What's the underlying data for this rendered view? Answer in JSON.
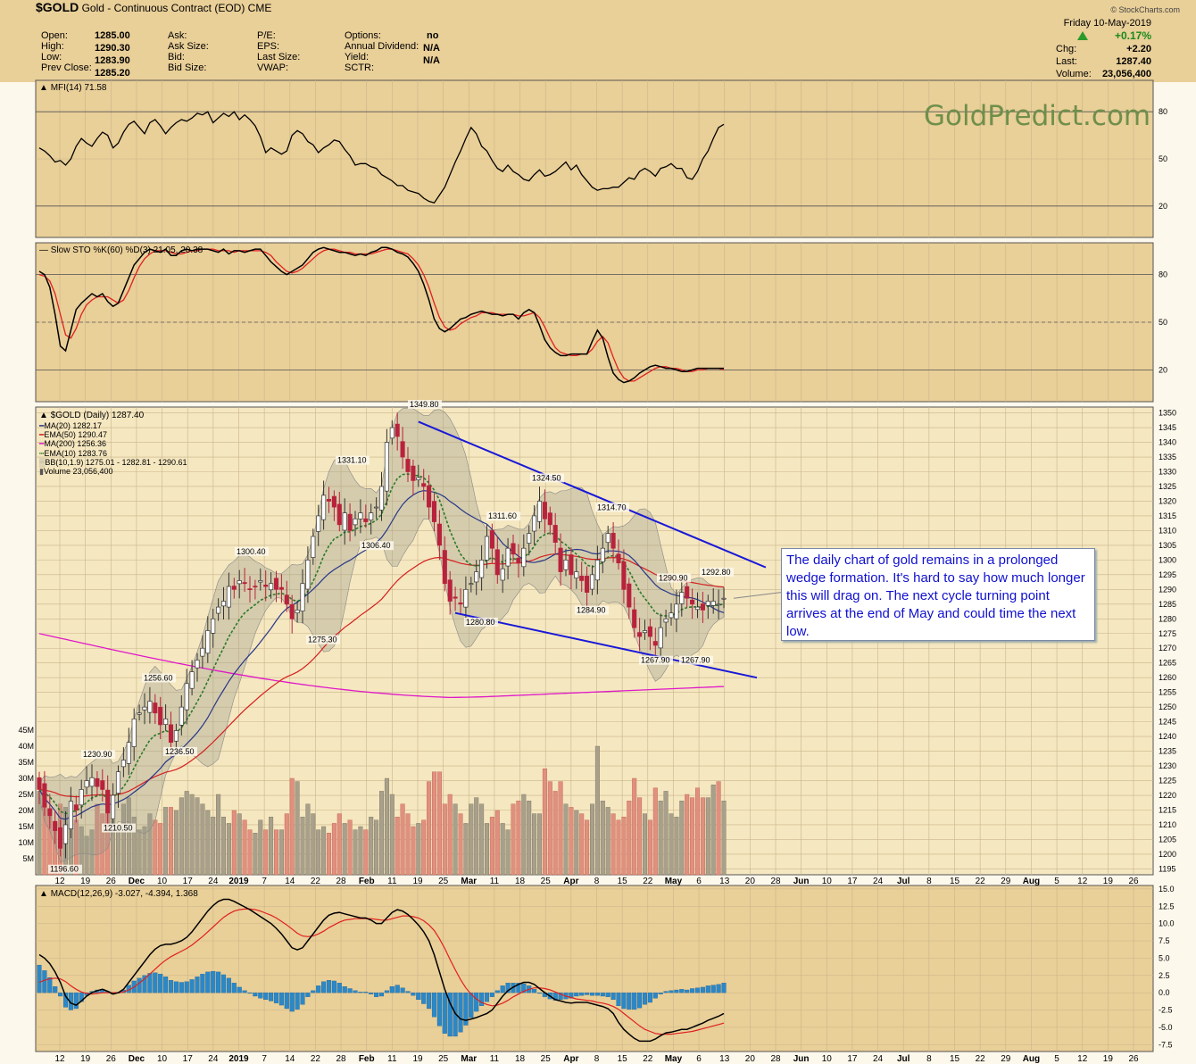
{
  "header": {
    "symbol": "$GOLD",
    "name": "Gold - Continuous Contract (EOD)",
    "exchange": "CME"
  },
  "quote": {
    "open_label": "Open:",
    "open": "1285.00",
    "high_label": "High:",
    "high": "1290.30",
    "low_label": "Low:",
    "low": "1283.90",
    "prev_label": "Prev Close:",
    "prev": "1285.20",
    "ask_label": "Ask:",
    "asksize_label": "Ask Size:",
    "bid_label": "Bid:",
    "bidsize_label": "Bid Size:",
    "pe_label": "P/E:",
    "eps_label": "EPS:",
    "lastsize_label": "Last Size:",
    "vwap_label": "VWAP:",
    "options_label": "Options:",
    "options": "no",
    "div_label": "Annual Dividend:",
    "div": "N/A",
    "yield_label": "Yield:",
    "yield": "N/A",
    "sctr_label": "SCTR:"
  },
  "right_quote": {
    "date": "Friday  10-May-2019",
    "pct": "+0.17%",
    "chg_label": "Chg:",
    "chg": "+2.20",
    "last_label": "Last:",
    "last": "1287.40",
    "vol_label": "Volume:",
    "vol": "23,056,400",
    "copyright": "© StockCharts.com"
  },
  "watermark": "GoldPredict.com",
  "note": "The daily chart of gold remains in a prolonged wedge formation. It's hard to say how much longer this will drag on. The next cycle turning point arrives at the end of May and could time the next low.",
  "panel_labels": {
    "mfi": "MFI(14) 71.58",
    "sto": "Slow STO %K(60) %D(3) 21.05, 20.38",
    "macd": "MACD(12,26,9) -3.027, -4.394, 1.368"
  },
  "legend": {
    "price": "$GOLD (Daily) 1287.40",
    "ma20": "MA(20) 1282.17",
    "ema50": "EMA(50) 1290.47",
    "ma200": "MA(200) 1256.36",
    "ema10": "EMA(10) 1283.76",
    "bb": "BB(10,1.9) 1275.01 - 1282.81 - 1290.61",
    "volume": "Volume 23,056,400"
  },
  "colors": {
    "panel_bg": "#e9cf98",
    "price_bg": "#f5e7c0",
    "up": "#ffffff",
    "down": "#b8223c",
    "ma20": "#27378a",
    "ema50": "#d42020",
    "ma200": "#e018c8",
    "ema10": "#2a7a2a",
    "wedge": "#1818d8",
    "macd_hist": "#2b88c8"
  },
  "chart_data": [
    {
      "type": "candlestick",
      "title": "$GOLD (Daily)",
      "y_axis": [
        1195,
        1200,
        1205,
        1210,
        1215,
        1220,
        1225,
        1230,
        1235,
        1240,
        1245,
        1250,
        1255,
        1260,
        1265,
        1270,
        1275,
        1280,
        1285,
        1290,
        1295,
        1300,
        1305,
        1310,
        1315,
        1320,
        1325,
        1330,
        1335,
        1340,
        1345,
        1350
      ],
      "ylim": [
        1193,
        1352
      ],
      "x_tick_labels": [
        "12",
        "19",
        "26",
        "Dec",
        "10",
        "17",
        "24",
        "2019",
        "7",
        "14",
        "22",
        "28",
        "Feb",
        "11",
        "19",
        "25",
        "Mar",
        "11",
        "18",
        "25",
        "Apr",
        "8",
        "15",
        "22",
        "May",
        "6",
        "13",
        "20",
        "28",
        "Jun",
        "10",
        "17",
        "24",
        "Jul",
        "8",
        "15",
        "22",
        "29",
        "Aug",
        "5",
        "12",
        "19",
        "26"
      ],
      "close": [
        1222,
        1216,
        1213,
        1208,
        1202,
        1210,
        1218,
        1215,
        1222,
        1225,
        1226,
        1223,
        1222,
        1214,
        1220,
        1228,
        1232,
        1238,
        1246,
        1248,
        1250,
        1252,
        1248,
        1244,
        1246,
        1238,
        1242,
        1250,
        1258,
        1262,
        1266,
        1270,
        1276,
        1280,
        1284,
        1286,
        1291,
        1290,
        1293,
        1292,
        1290,
        1291,
        1293,
        1291,
        1292,
        1290,
        1290,
        1285,
        1280,
        1283,
        1292,
        1300,
        1308,
        1315,
        1322,
        1320,
        1318,
        1312,
        1316,
        1310,
        1314,
        1316,
        1313,
        1316,
        1318,
        1325,
        1340,
        1345,
        1342,
        1335,
        1330,
        1327,
        1328,
        1325,
        1318,
        1313,
        1305,
        1292,
        1286,
        1287,
        1285,
        1290,
        1292,
        1296,
        1300,
        1308,
        1304,
        1295,
        1297,
        1304,
        1302,
        1299,
        1304,
        1309,
        1315,
        1320,
        1314,
        1312,
        1306,
        1296,
        1300,
        1295,
        1296,
        1293,
        1289,
        1295,
        1300,
        1304,
        1309,
        1304,
        1299,
        1290,
        1284,
        1277,
        1274,
        1276,
        1274,
        1271,
        1277,
        1280,
        1282,
        1285,
        1289,
        1287,
        1285,
        1284,
        1283,
        1286,
        1286,
        1285,
        1287
      ],
      "labels": [
        {
          "text": "1349.80",
          "value": 1349.8
        },
        {
          "text": "1331.10",
          "value": 1331.1
        },
        {
          "text": "1324.50",
          "value": 1324.5
        },
        {
          "text": "1314.70",
          "value": 1314.7
        },
        {
          "text": "1311.60",
          "value": 1311.6
        },
        {
          "text": "1306.40",
          "value": 1306.4
        },
        {
          "text": "1300.40",
          "value": 1300.4
        },
        {
          "text": "1292.80",
          "value": 1292.8
        },
        {
          "text": "1290.90",
          "value": 1290.9
        },
        {
          "text": "1284.90",
          "value": 1284.9
        },
        {
          "text": "1280.80",
          "value": 1280.8
        },
        {
          "text": "1275.30",
          "value": 1275.3
        },
        {
          "text": "1267.90",
          "value": 1267.9
        },
        {
          "text": "1267.90",
          "value": 1267.9
        },
        {
          "text": "1256.60",
          "value": 1256.6
        },
        {
          "text": "1236.50",
          "value": 1236.5
        },
        {
          "text": "1230.90",
          "value": 1230.9
        },
        {
          "text": "1210.50",
          "value": 1210.5
        },
        {
          "text": "1196.60",
          "value": 1196.6
        }
      ],
      "volume_axis": [
        "5M",
        "10M",
        "15M",
        "20M",
        "25M",
        "30M",
        "35M",
        "40M",
        "45M"
      ],
      "volume_m": [
        26,
        22,
        18,
        14,
        22,
        21,
        19,
        17,
        15,
        12,
        14,
        22,
        19,
        26,
        17,
        15,
        22,
        24,
        18,
        14,
        15,
        19,
        17,
        16,
        21,
        21,
        20,
        24,
        26,
        25,
        24,
        22,
        20,
        18,
        25,
        18,
        16,
        20,
        19,
        17,
        14,
        13,
        17,
        14,
        18,
        14,
        14,
        19,
        30,
        29,
        18,
        22,
        19,
        14,
        15,
        13,
        16,
        19,
        16,
        17,
        14,
        15,
        14,
        18,
        17,
        26,
        30,
        25,
        18,
        22,
        19,
        15,
        16,
        17,
        29,
        32,
        32,
        22,
        25,
        22,
        19,
        16,
        22,
        24,
        22,
        16,
        18,
        20,
        16,
        14,
        22,
        23,
        25,
        23,
        19,
        19,
        33,
        29,
        26,
        29,
        22,
        21,
        20,
        19,
        17,
        22,
        40,
        23,
        21,
        19,
        17,
        18,
        23,
        30,
        24,
        19,
        17,
        27,
        23,
        26,
        19,
        18,
        23,
        25,
        24,
        27,
        24,
        24,
        28,
        29,
        23
      ]
    },
    {
      "type": "line",
      "title": "MFI(14)",
      "y_axis": [
        20,
        50,
        80
      ],
      "values": [
        57,
        55,
        52,
        48,
        49,
        46,
        50,
        58,
        63,
        60,
        58,
        63,
        67,
        65,
        57,
        60,
        67,
        72,
        74,
        70,
        66,
        73,
        75,
        71,
        66,
        70,
        73,
        75,
        74,
        76,
        79,
        78,
        80,
        73,
        76,
        79,
        77,
        80,
        75,
        78,
        75,
        71,
        64,
        54,
        57,
        55,
        53,
        55,
        65,
        68,
        66,
        61,
        59,
        54,
        57,
        59,
        62,
        61,
        56,
        52,
        46,
        47,
        47,
        45,
        44,
        40,
        38,
        36,
        33,
        33,
        30,
        29,
        28,
        25,
        23,
        22,
        27,
        32,
        40,
        48,
        55,
        63,
        70,
        66,
        58,
        55,
        49,
        44,
        42,
        46,
        42,
        40,
        37,
        36,
        40,
        43,
        39,
        40,
        42,
        45,
        48,
        43,
        46,
        40,
        36,
        32,
        30,
        31,
        31,
        32,
        32,
        35,
        38,
        37,
        42,
        44,
        42,
        39,
        44,
        45,
        47,
        44,
        44,
        38,
        37,
        42,
        50,
        55,
        63,
        70,
        72
      ]
    },
    {
      "type": "line",
      "title": "Slow STO %K(60) %D(3)",
      "y_axis": [
        20,
        50,
        80
      ],
      "series": [
        {
          "name": "%K",
          "values": [
            82,
            80,
            72,
            55,
            35,
            32,
            45,
            58,
            62,
            65,
            68,
            66,
            68,
            63,
            60,
            62,
            70,
            78,
            86,
            90,
            94,
            96,
            95,
            94,
            96,
            92,
            92,
            95,
            96,
            95,
            96,
            96,
            96,
            95,
            94,
            96,
            93,
            95,
            95,
            94,
            95,
            96,
            96,
            92,
            88,
            85,
            82,
            80,
            82,
            84,
            86,
            90,
            94,
            96,
            97,
            96,
            95,
            94,
            94,
            93,
            92,
            93,
            92,
            94,
            95,
            97,
            97,
            96,
            94,
            93,
            91,
            87,
            82,
            74,
            64,
            52,
            46,
            44,
            46,
            49,
            52,
            53,
            55,
            56,
            57,
            56,
            55,
            55,
            54,
            55,
            55,
            52,
            56,
            58,
            56,
            48,
            39,
            34,
            31,
            29,
            29,
            30,
            30,
            30,
            30,
            38,
            45,
            40,
            28,
            18,
            14,
            12,
            13,
            15,
            18,
            20,
            22,
            23,
            22,
            21,
            21,
            20,
            19,
            19,
            20,
            21,
            21,
            21,
            21,
            21,
            21
          ]
        },
        {
          "name": "%D",
          "values": [
            80,
            79,
            76,
            68,
            55,
            42,
            40,
            46,
            55,
            61,
            64,
            66,
            66,
            66,
            64,
            62,
            64,
            70,
            78,
            85,
            90,
            93,
            95,
            95,
            95,
            94,
            93,
            93,
            94,
            95,
            95,
            96,
            96,
            96,
            95,
            95,
            95,
            94,
            95,
            95,
            95,
            95,
            95,
            94,
            92,
            88,
            85,
            82,
            81,
            82,
            84,
            87,
            90,
            93,
            95,
            96,
            96,
            95,
            94,
            94,
            93,
            93,
            93,
            93,
            94,
            95,
            96,
            96,
            95,
            94,
            93,
            90,
            86,
            80,
            72,
            62,
            53,
            47,
            45,
            46,
            49,
            51,
            53,
            54,
            56,
            56,
            56,
            55,
            55,
            55,
            55,
            54,
            54,
            55,
            56,
            53,
            47,
            40,
            34,
            31,
            30,
            29,
            29,
            30,
            30,
            33,
            38,
            41,
            37,
            28,
            20,
            15,
            13,
            13,
            15,
            17,
            19,
            21,
            22,
            22,
            21,
            21,
            20,
            19,
            19,
            20,
            20,
            21,
            21,
            21,
            20
          ]
        }
      ]
    },
    {
      "type": "line",
      "title": "MACD(12,26,9)",
      "y_axis": [
        -7.5,
        -5.0,
        -2.5,
        0.0,
        2.5,
        5.0,
        7.5,
        10.0,
        12.5,
        15.0
      ],
      "series": [
        {
          "name": "MACD",
          "values": [
            5.5,
            5.0,
            4.2,
            3.0,
            1.5,
            -0.5,
            -1.5,
            -1.8,
            -1.2,
            -0.5,
            0.0,
            0.3,
            0.5,
            0.2,
            -0.2,
            0.0,
            0.5,
            1.5,
            2.5,
            3.5,
            4.5,
            5.5,
            6.3,
            6.8,
            7.0,
            7.0,
            7.2,
            7.5,
            8.0,
            8.8,
            9.8,
            10.8,
            11.8,
            12.6,
            13.2,
            13.5,
            13.5,
            13.2,
            12.8,
            12.4,
            12.0,
            11.5,
            11.0,
            10.5,
            10.0,
            9.3,
            8.5,
            7.5,
            6.5,
            6.2,
            6.5,
            7.5,
            8.5,
            9.5,
            10.5,
            11.2,
            11.5,
            11.6,
            11.4,
            11.2,
            11.0,
            10.8,
            10.8,
            10.5,
            10.0,
            10.0,
            10.8,
            11.6,
            12.0,
            11.8,
            11.3,
            10.6,
            9.8,
            8.8,
            7.5,
            5.5,
            3.0,
            0.5,
            -1.5,
            -3.0,
            -3.8,
            -4.0,
            -3.8,
            -3.6,
            -3.3,
            -3.0,
            -2.5,
            -1.5,
            -0.5,
            0.3,
            0.8,
            1.2,
            1.5,
            1.5,
            1.2,
            0.6,
            0.0,
            -0.5,
            -1.0,
            -1.2,
            -1.4,
            -1.5,
            -1.4,
            -1.4,
            -1.4,
            -1.6,
            -1.8,
            -2.0,
            -2.3,
            -3.0,
            -4.3,
            -5.3,
            -6.0,
            -6.6,
            -7.0,
            -7.0,
            -7.0,
            -6.7,
            -6.2,
            -5.8,
            -5.7,
            -5.5,
            -5.3,
            -5.3,
            -5.0,
            -4.7,
            -4.4,
            -4.0,
            -3.7,
            -3.4,
            -3.0
          ]
        },
        {
          "name": "Signal",
          "values": [
            1.5,
            1.8,
            2.0,
            2.1,
            2.0,
            1.6,
            1.0,
            0.5,
            0.1,
            -0.1,
            -0.2,
            -0.1,
            0.0,
            0.0,
            0.0,
            0.0,
            0.1,
            0.4,
            0.8,
            1.4,
            2.0,
            2.7,
            3.4,
            4.1,
            4.7,
            5.2,
            5.6,
            6.0,
            6.4,
            6.9,
            7.5,
            8.1,
            8.8,
            9.5,
            10.2,
            10.9,
            11.4,
            11.8,
            12.0,
            12.1,
            12.1,
            12.0,
            11.8,
            11.5,
            11.2,
            10.8,
            10.3,
            9.8,
            9.2,
            8.6,
            8.2,
            8.1,
            8.2,
            8.5,
            8.9,
            9.4,
            9.8,
            10.2,
            10.5,
            10.6,
            10.7,
            10.7,
            10.7,
            10.7,
            10.6,
            10.5,
            10.5,
            10.7,
            10.9,
            11.1,
            11.1,
            11.0,
            10.8,
            10.4,
            9.8,
            9.0,
            7.8,
            6.4,
            4.8,
            3.3,
            1.9,
            0.7,
            -0.2,
            -0.9,
            -1.4,
            -1.7,
            -1.9,
            -1.8,
            -1.5,
            -1.1,
            -0.6,
            -0.2,
            0.2,
            0.5,
            0.7,
            0.7,
            0.6,
            0.4,
            0.1,
            -0.2,
            -0.5,
            -0.7,
            -0.9,
            -1.0,
            -1.1,
            -1.2,
            -1.4,
            -1.5,
            -1.7,
            -2.0,
            -2.4,
            -3.0,
            -3.6,
            -4.2,
            -4.8,
            -5.3,
            -5.6,
            -5.9,
            -6.0,
            -6.0,
            -6.0,
            -5.9,
            -5.8,
            -5.7,
            -5.6,
            -5.4,
            -5.2,
            -5.0,
            -4.8,
            -4.6,
            -4.4
          ]
        }
      ]
    }
  ]
}
